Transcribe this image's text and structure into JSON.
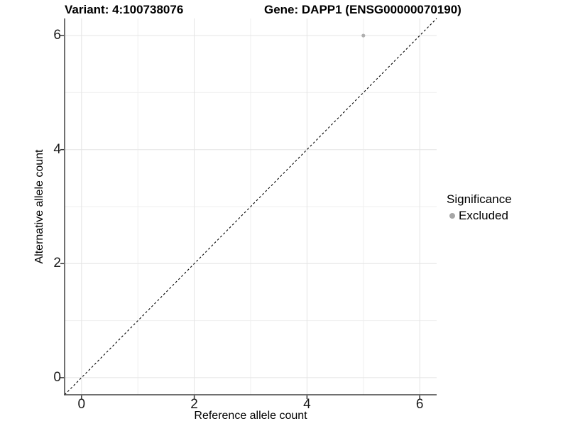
{
  "plot": {
    "title_variant": "Variant: 4:100738076",
    "title_gene": "Gene: DAPP1 (ENSG00000070190)"
  },
  "chart_data": {
    "type": "scatter",
    "title": "Variant: 4:100738076 — Gene: DAPP1 (ENSG00000070190)",
    "xlabel": "Reference allele count",
    "ylabel": "Alternative allele count",
    "xlim": [
      -0.3,
      6.3
    ],
    "ylim": [
      -0.3,
      6.3
    ],
    "xticks": [
      0,
      2,
      4,
      6
    ],
    "yticks": [
      0,
      2,
      4,
      6
    ],
    "minor_gridlines_x": [
      1,
      3,
      5
    ],
    "minor_gridlines_y": [
      1,
      3,
      5
    ],
    "grid": true,
    "series": [
      {
        "name": "Excluded",
        "color": "#afafaf",
        "points": [
          {
            "x": 5,
            "y": 6
          }
        ]
      }
    ],
    "reference_line": {
      "equation": "y = x",
      "style": "dashed",
      "color": "#000000"
    },
    "legend": {
      "title": "Significance",
      "position": "right",
      "items": [
        {
          "label": "Excluded",
          "color": "#a6a6a6"
        }
      ]
    },
    "colors": {
      "axis_line": "#404040",
      "tick_mark": "#333333",
      "grid_major": "#e4e4e4",
      "grid_minor": "#efefef",
      "background": "#ffffff"
    }
  }
}
